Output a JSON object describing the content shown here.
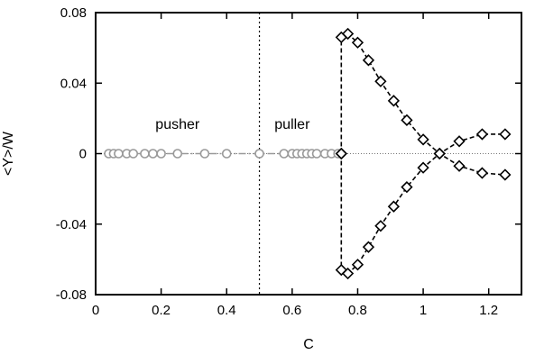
{
  "chart_data": {
    "type": "line",
    "xlabel": "C",
    "ylabel": "<Y>/W",
    "xlim": [
      0,
      1.3
    ],
    "ylim": [
      -0.08,
      0.08
    ],
    "xticks": [
      0,
      0.2,
      0.4,
      0.6,
      0.8,
      1,
      1.2
    ],
    "xtick_labels": [
      "0",
      "0.2",
      "0.4",
      "0.6",
      "0.8",
      "1",
      "1.2"
    ],
    "yticks": [
      -0.08,
      -0.04,
      0,
      0.04,
      0.08
    ],
    "ytick_labels": [
      "-0.08",
      "-0.04",
      "0",
      "0.04",
      "0.08"
    ],
    "annotations": [
      {
        "text": "pusher",
        "x": 0.25,
        "y": 0.014
      },
      {
        "text": "puller",
        "x": 0.6,
        "y": 0.014
      }
    ],
    "reference_lines": {
      "vertical_dotted_x": 0.5,
      "horizontal_dotted_y": 0
    },
    "series": [
      {
        "marker": "circle",
        "color": "#999999",
        "line": "dash-dot",
        "x": [
          0.04,
          0.055,
          0.07,
          0.095,
          0.115,
          0.15,
          0.175,
          0.2,
          0.25,
          0.333,
          0.4,
          0.5,
          0.575,
          0.6,
          0.615,
          0.63,
          0.645,
          0.66,
          0.675,
          0.7,
          0.72,
          0.74
        ],
        "y": [
          0,
          0,
          0,
          0,
          0,
          0,
          0,
          0,
          0,
          0,
          0,
          0,
          0,
          0,
          0,
          0,
          0,
          0,
          0,
          0,
          0,
          0
        ]
      },
      {
        "marker": "diamond",
        "color": "#000000",
        "line": "dashed",
        "x": [
          0.75,
          0.75,
          0.77,
          0.8,
          0.833,
          0.87,
          0.91,
          0.95,
          1.0,
          1.05,
          1.11,
          1.18,
          1.25
        ],
        "y": [
          0,
          0.066,
          0.068,
          0.063,
          0.053,
          0.041,
          0.03,
          0.019,
          0.008,
          0,
          -0.007,
          -0.011,
          -0.012
        ]
      },
      {
        "marker": "diamond",
        "color": "#000000",
        "line": "dashed",
        "x": [
          0.75,
          0.75,
          0.77,
          0.8,
          0.833,
          0.87,
          0.91,
          0.95,
          1.0,
          1.05,
          1.11,
          1.18,
          1.25
        ],
        "y": [
          0,
          -0.066,
          -0.068,
          -0.063,
          -0.053,
          -0.041,
          -0.03,
          -0.019,
          -0.008,
          0,
          0.007,
          0.011,
          0.011
        ]
      }
    ]
  }
}
